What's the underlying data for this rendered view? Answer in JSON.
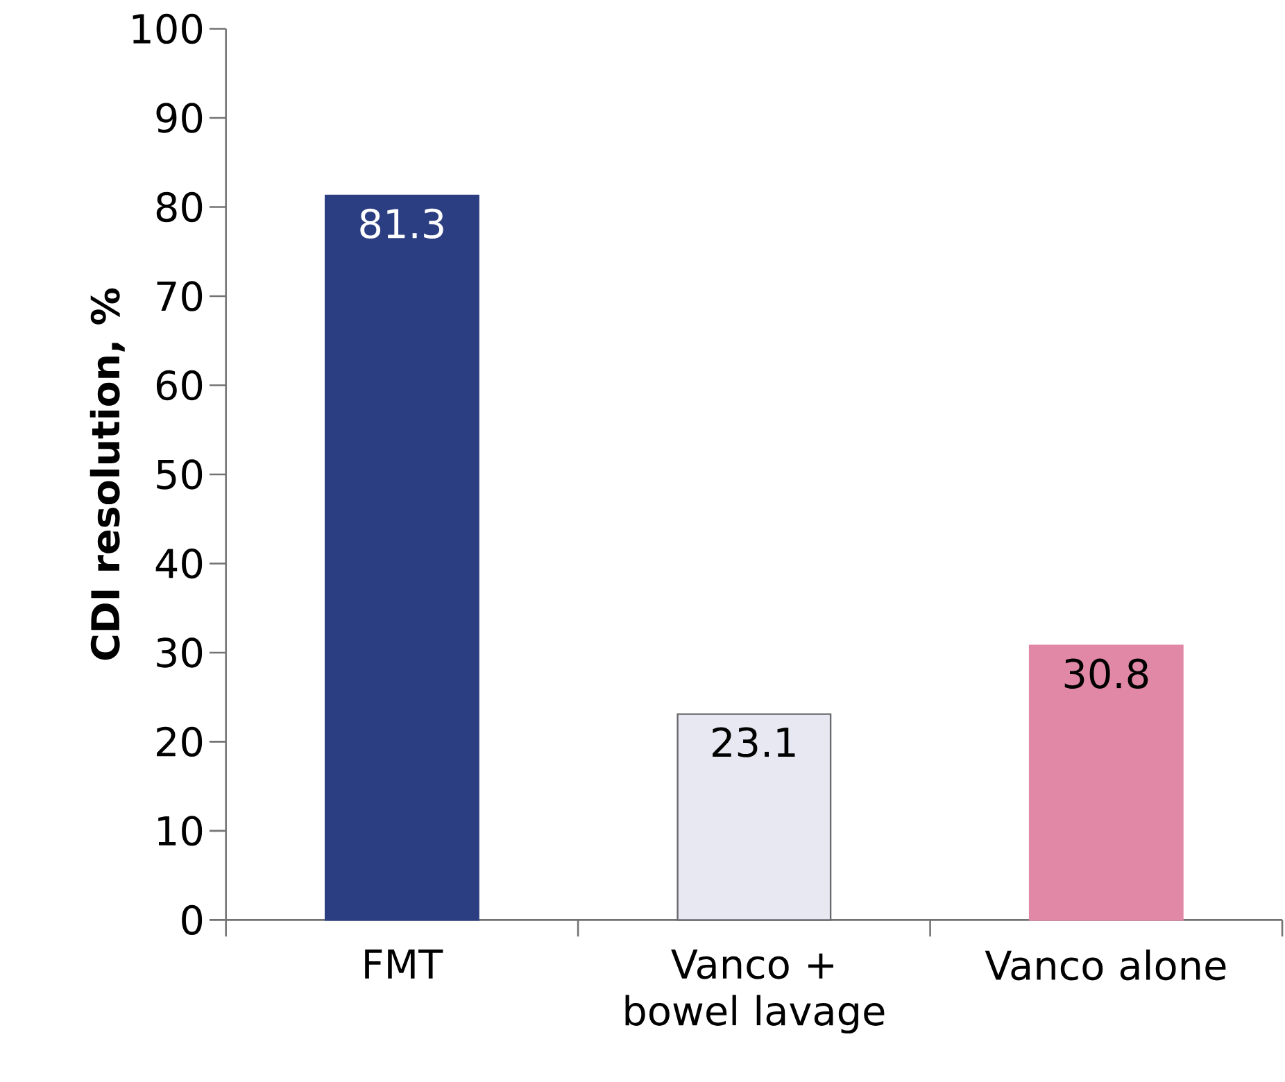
{
  "chart_data": {
    "type": "bar",
    "ylabel": "CDI resolution, %",
    "categories": [
      "FMT",
      "Vanco + bowel lavage",
      "Vanco alone"
    ],
    "values": [
      81.3,
      23.1,
      30.8
    ],
    "colors": [
      "#2c3e82",
      "#e8e8f3",
      "#e088a6"
    ],
    "ylim": [
      0,
      100
    ],
    "yticks": [
      0,
      10,
      20,
      30,
      40,
      50,
      60,
      70,
      80,
      90,
      100
    ],
    "data_labels": true
  }
}
